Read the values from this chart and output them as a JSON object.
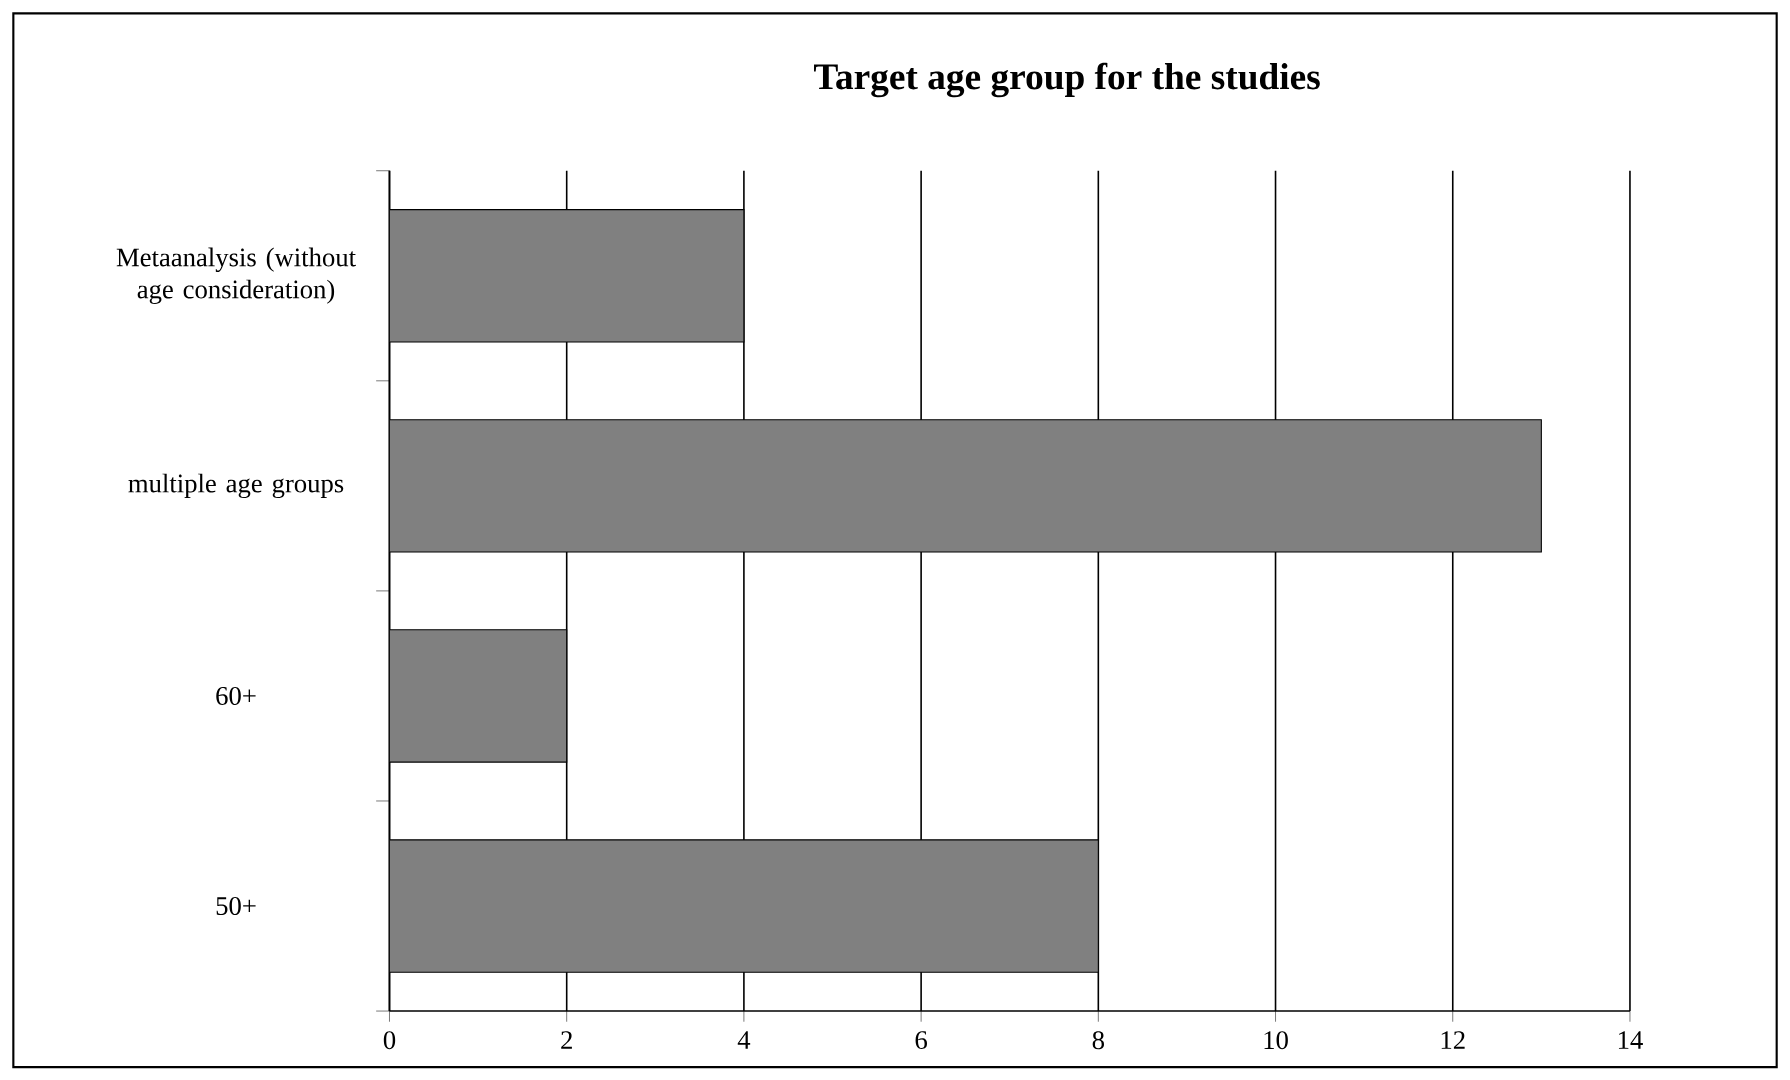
{
  "chart_data": {
    "type": "bar",
    "orientation": "horizontal",
    "title": "Target age group for the studies",
    "categories": [
      "Metaanalysis (without age consideration)",
      "multiple age groups",
      "60+",
      "50+"
    ],
    "values": [
      4,
      13,
      2,
      8
    ],
    "color": "#808080",
    "xlim": [
      0,
      14
    ],
    "xticks": [
      0,
      2,
      4,
      6,
      8,
      10,
      12,
      14
    ],
    "grid": "x"
  }
}
